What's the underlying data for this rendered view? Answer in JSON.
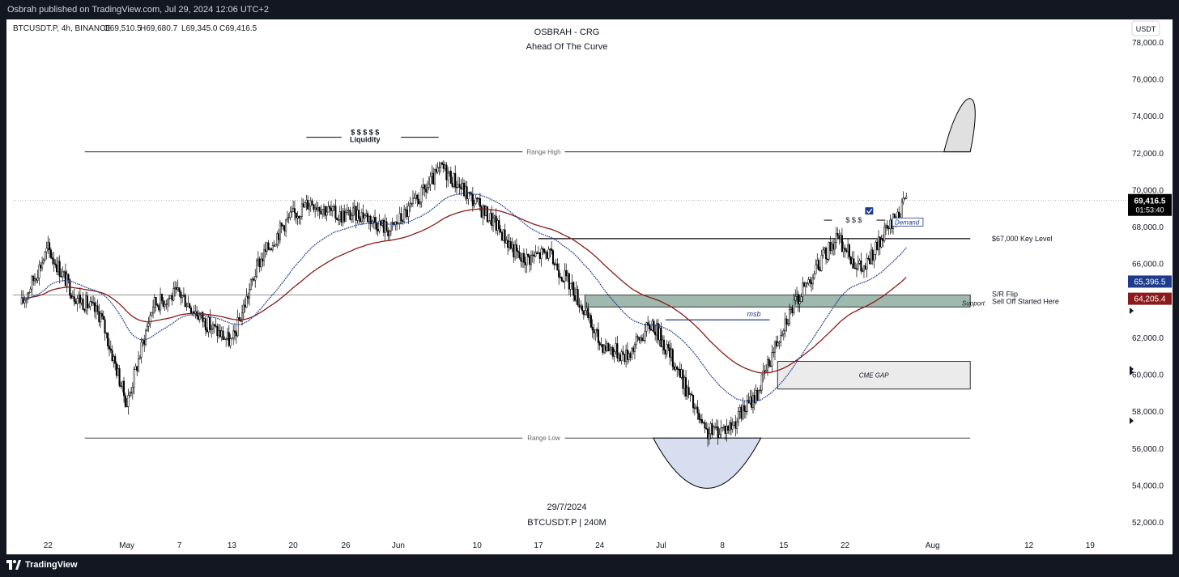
{
  "header": {
    "publisher_line": "Osbrah published on TradingView.com, Jul 29, 2024 12:06 UTC+2"
  },
  "footer": {
    "brand": "TradingView"
  },
  "chart_data": {
    "type": "candlestick",
    "symbol_line": "BTCUSDT.P, 4h, BINANCE",
    "ohlc": {
      "o": "O69,510.5",
      "h": "H69,680.7",
      "l": "L69,345.0",
      "c": "C69,416.5"
    },
    "title": "OSBRAH - CRG",
    "subtitle": "Ahead Of The Curve",
    "footer_date": "29/7/2024",
    "footer_symbol": "BTCUSDT.P | 240M",
    "currency_button": "USDT",
    "y_ticks": [
      "52,000.0",
      "54,000.0",
      "56,000.0",
      "58,000.0",
      "60,000.0",
      "62,000.0",
      "64,000.0",
      "66,000.0",
      "68,000.0",
      "70,000.0",
      "72,000.0",
      "74,000.0",
      "76,000.0",
      "78,000.0"
    ],
    "x_ticks": [
      "22",
      "May",
      "7",
      "13",
      "20",
      "26",
      "Jun",
      "10",
      "17",
      "24",
      "Jul",
      "8",
      "15",
      "22",
      "Aug",
      "12",
      "19"
    ],
    "price_labels": {
      "last": "69,416.5",
      "countdown": "01:53:40",
      "ema_blue": "65,396.5",
      "ema_red": "64,205.4"
    },
    "price_label_colors": {
      "last": "#000000",
      "ema_blue": "#1e3a8a",
      "ema_red": "#8b1a1a"
    },
    "annotations": {
      "range_high": "Range High",
      "range_low": "Range Low",
      "liquidity_symbols": "$ $ $ $ $",
      "liquidity": "Liquidity",
      "key_level": "$67,000 Key Level",
      "sr_flip": "S/R Flip",
      "sell_off": "Sell Off Started Here",
      "support": "Support",
      "cme_gap": "CME GAP",
      "msb": "msb",
      "dollars_small": "$ $ $",
      "demand": "Demand"
    },
    "levels": {
      "range_high": 72050,
      "range_low": 56550,
      "key_level": 67350,
      "sr_flip": 64300,
      "support_low": 63650,
      "cme_gap_high": 60700,
      "cme_gap_low": 59200
    },
    "x": [
      "Apr 19",
      "Apr 22",
      "Apr 25",
      "Apr 28",
      "May 1",
      "May 4",
      "May 7",
      "May 10",
      "May 13",
      "May 16",
      "May 19",
      "May 22",
      "May 25",
      "May 28",
      "May 31",
      "Jun 3",
      "Jun 6",
      "Jun 9",
      "Jun 12",
      "Jun 15",
      "Jun 18",
      "Jun 21",
      "Jun 24",
      "Jun 27",
      "Jun 30",
      "Jul 3",
      "Jul 6",
      "Jul 9",
      "Jul 12",
      "Jul 15",
      "Jul 18",
      "Jul 21",
      "Jul 24",
      "Jul 27",
      "Jul 29"
    ],
    "close": [
      63800,
      66800,
      64300,
      63200,
      58400,
      63800,
      64400,
      62800,
      61700,
      66000,
      68200,
      69400,
      68600,
      68700,
      67800,
      69300,
      71200,
      69700,
      68200,
      66200,
      66600,
      64600,
      61700,
      61000,
      62800,
      60200,
      56800,
      57200,
      59000,
      62800,
      65200,
      67400,
      65600,
      67900,
      69416.5
    ],
    "colors": {
      "up": "#000000",
      "down": "#000000",
      "ema_blue": "#1e3a8a",
      "ema_red": "#8b1a1a",
      "support_zone": "#9fb9ae",
      "cme_gap": "#ebebeb",
      "bowl": "#d6deef"
    },
    "ylim": [
      51300,
      79400
    ],
    "xlim": [
      "Apr 18",
      "Aug 21"
    ],
    "grid": false,
    "legend": "none"
  }
}
